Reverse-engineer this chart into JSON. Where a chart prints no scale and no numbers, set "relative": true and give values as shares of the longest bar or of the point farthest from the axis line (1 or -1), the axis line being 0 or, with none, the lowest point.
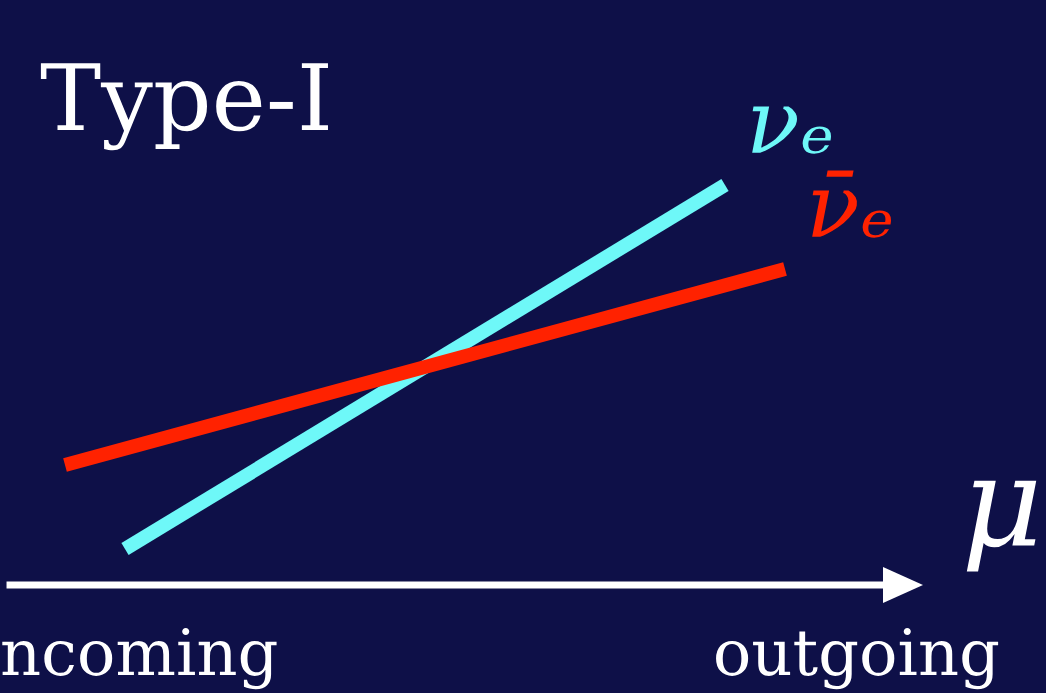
{
  "chart_data": {
    "type": "line",
    "title": "Type-I",
    "ylabel": "μ",
    "relative": true,
    "legend": false,
    "grid": false,
    "categories": [
      null,
      null,
      null,
      null,
      null,
      null,
      null,
      null,
      null,
      null,
      null,
      null,
      null
    ],
    "series": [
      {
        "name": "νₑ",
        "color": "#6ef8f8",
        "values": [
          null,
          0.09,
          null,
          null,
          null,
          null,
          null,
          null,
          null,
          null,
          null,
          1.0,
          null
        ]
      },
      {
        "name": "ν̄ₑ",
        "color": "#ff2200",
        "values": [
          0.3,
          null,
          null,
          null,
          null,
          null,
          null,
          null,
          null,
          null,
          null,
          null,
          0.79
        ]
      }
    ],
    "annotations": [
      "ncoming",
      "outgoing"
    ]
  }
}
